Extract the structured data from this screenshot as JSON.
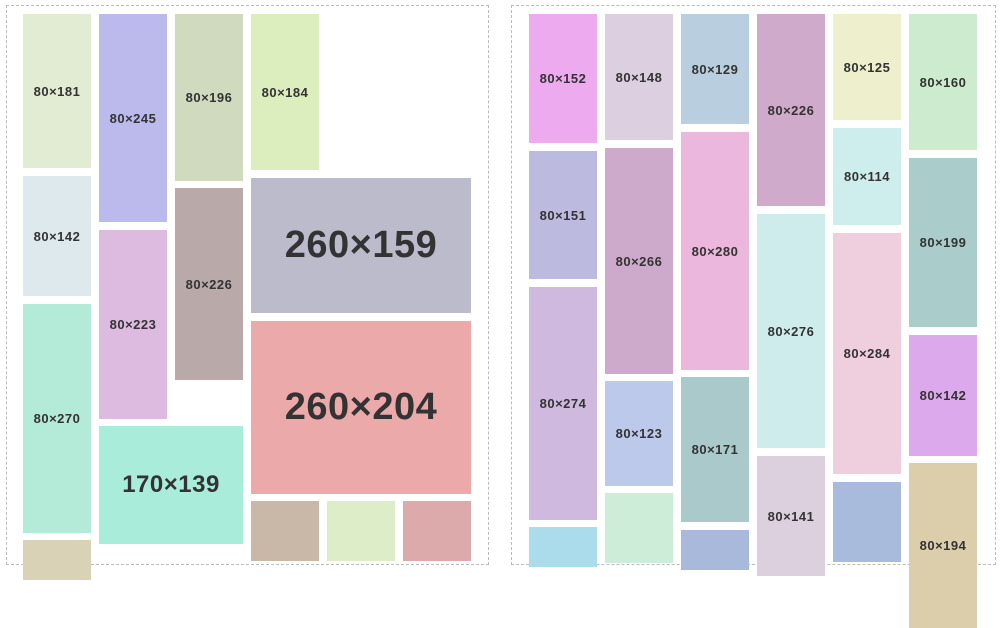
{
  "panels": [
    {
      "tiles": [
        "80×181",
        "80×142",
        "80×270",
        "80×245",
        "80×223",
        "170×139",
        "80×196",
        "80×226",
        "80×184",
        "260×159",
        "260×204"
      ]
    },
    {
      "tiles": [
        "80×152",
        "80×151",
        "80×274",
        "80×148",
        "80×266",
        "80×123",
        "80×129",
        "80×280",
        "80×171",
        "80×226",
        "80×276",
        "80×141",
        "80×125",
        "80×114",
        "80×284",
        "80×160",
        "80×199",
        "80×142",
        "80×194"
      ]
    }
  ]
}
